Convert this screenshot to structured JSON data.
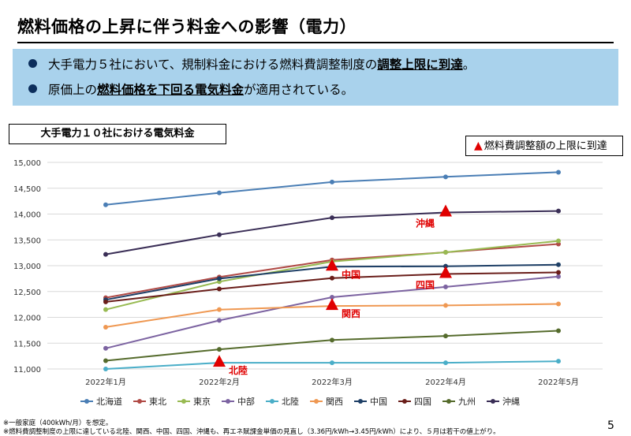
{
  "header": {
    "title": "燃料価格の上昇に伴う料金への影響（電力）"
  },
  "summary": {
    "bullet1": {
      "pre": "大手電力５社において、規制料金における燃料費調整制度の",
      "emph": "調整上限に到達",
      "post": "。"
    },
    "bullet2": {
      "pre": "原価上の",
      "emph": "燃料価格を下回る電気料金",
      "post": "が適用されている。"
    }
  },
  "chart_box_title": "大手電力１０社における電気料金",
  "annotation_box": {
    "marker": "▲",
    "label": "燃料費調整額の上限に到達",
    "marker_color": "#e00000"
  },
  "chart_data": {
    "type": "line",
    "categories": [
      "2022年1月",
      "2022年2月",
      "2022年3月",
      "2022年4月",
      "2022年5月"
    ],
    "ylim": [
      11000,
      15000
    ],
    "yticks": [
      "11,000",
      "11,500",
      "12,000",
      "12,500",
      "13,000",
      "13,500",
      "14,000",
      "14,500",
      "15,000"
    ],
    "grid": true,
    "legend_position": "bottom",
    "series": [
      {
        "name": "北海道",
        "color": "#4a7eb5",
        "values": [
          14180,
          14410,
          14620,
          14720,
          14810
        ]
      },
      {
        "name": "東北",
        "color": "#b04a46",
        "values": [
          12380,
          12780,
          13110,
          13260,
          13420
        ]
      },
      {
        "name": "東京",
        "color": "#98ba52",
        "values": [
          12150,
          12690,
          13080,
          13260,
          13480
        ]
      },
      {
        "name": "中部",
        "color": "#7c63a1",
        "values": [
          11400,
          11940,
          12390,
          12590,
          12790
        ]
      },
      {
        "name": "北陸",
        "color": "#4aaec8",
        "values": [
          11000,
          11120,
          11120,
          11120,
          11150
        ]
      },
      {
        "name": "関西",
        "color": "#ef9852",
        "values": [
          11810,
          12150,
          12220,
          12230,
          12260
        ]
      },
      {
        "name": "中国",
        "color": "#1e3f66",
        "values": [
          12340,
          12750,
          12980,
          12990,
          13020
        ]
      },
      {
        "name": "四国",
        "color": "#6a1e1a",
        "values": [
          12300,
          12550,
          12760,
          12840,
          12870
        ]
      },
      {
        "name": "九州",
        "color": "#556b2c",
        "values": [
          11160,
          11380,
          11560,
          11640,
          11740
        ]
      },
      {
        "name": "沖縄",
        "color": "#3a2e56",
        "values": [
          13220,
          13600,
          13930,
          14030,
          14060
        ]
      }
    ],
    "annotations": [
      {
        "label": "沖縄",
        "series": "沖縄",
        "category": "2022年4月",
        "value": 14030,
        "label_side": "below-left"
      },
      {
        "label": "中国",
        "series": "中国",
        "category": "2022年3月",
        "value": 12980,
        "label_side": "right-below"
      },
      {
        "label": "四国",
        "series": "四国",
        "category": "2022年4月",
        "value": 12840,
        "label_side": "below-left"
      },
      {
        "label": "関西",
        "series": "関西",
        "category": "2022年3月",
        "value": 12220,
        "label_side": "right-below"
      },
      {
        "label": "北陸",
        "series": "北陸",
        "category": "2022年2月",
        "value": 11120,
        "label_side": "right-below"
      }
    ]
  },
  "footnotes": [
    "※一般家庭（400kWh/月）を想定。",
    "※燃料費調整制度の上限に達している北陸、関西、中国、四国、沖縄も、再エネ賦課金単価の見直し（3.36円/kWh→3.45円/kWh）により、５月は若干の値上がり。"
  ],
  "page_number": "5"
}
